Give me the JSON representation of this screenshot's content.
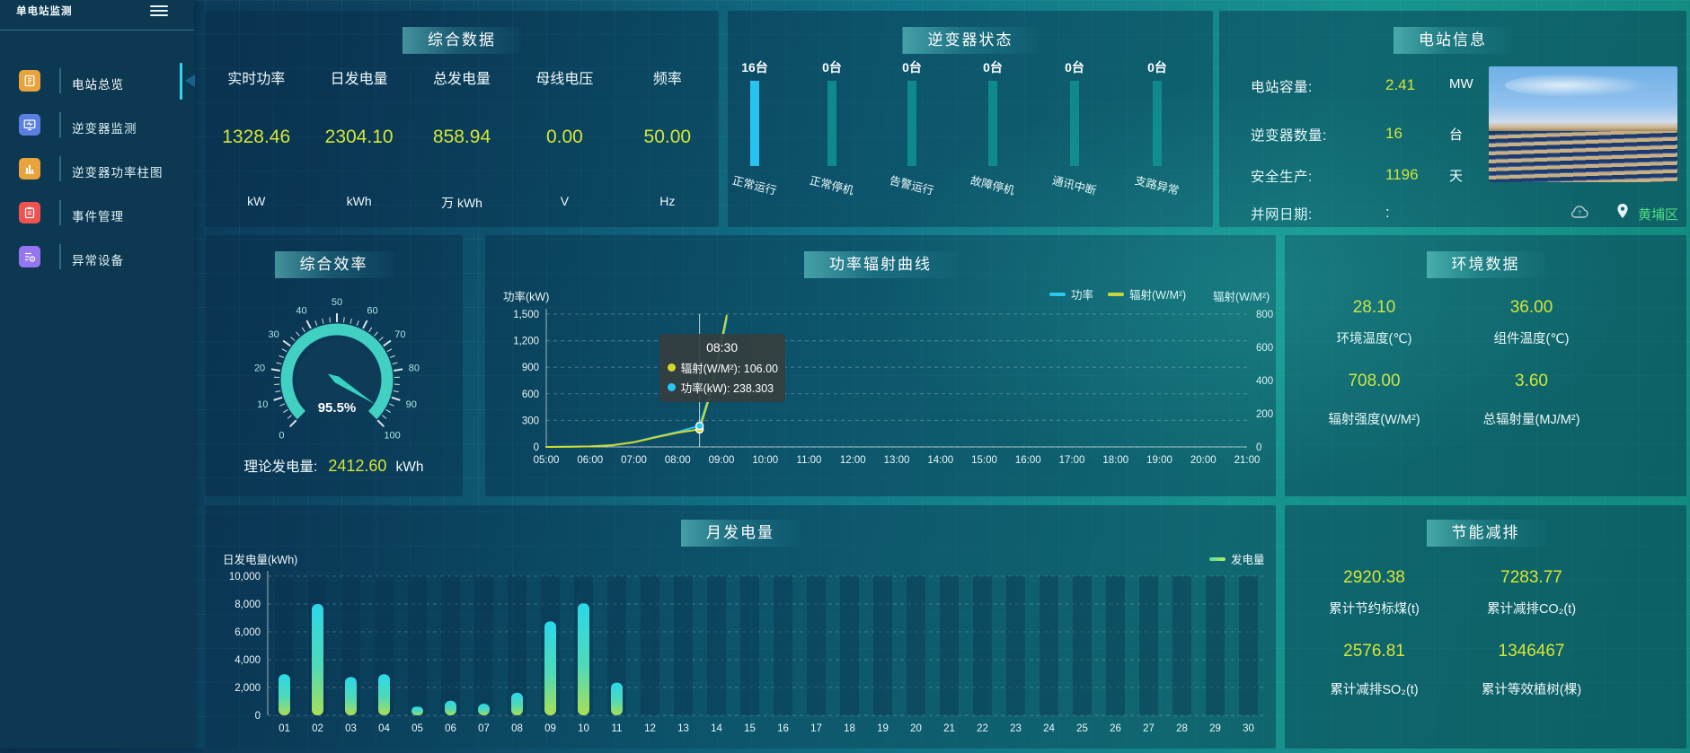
{
  "app": {
    "title": "单电站监测",
    "location": "黄埔区"
  },
  "sidebar": {
    "items": [
      {
        "label": "电站总览",
        "icon": "overview-icon",
        "color": "#e8a33d",
        "active": true
      },
      {
        "label": "逆变器监测",
        "icon": "inverter-monitor-icon",
        "color": "#5b7fe0",
        "active": false
      },
      {
        "label": "逆变器功率柱图",
        "icon": "inverter-power-bars-icon",
        "color": "#e8a33d",
        "active": false
      },
      {
        "label": "事件管理",
        "icon": "event-management-icon",
        "color": "#ef5350",
        "active": false
      },
      {
        "label": "异常设备",
        "icon": "abnormal-device-icon",
        "color": "#9575f0",
        "active": false
      }
    ]
  },
  "summary": {
    "title": "综合数据",
    "metrics": [
      {
        "label": "实时功率",
        "value": "1328.46",
        "unit": "kW"
      },
      {
        "label": "日发电量",
        "value": "2304.10",
        "unit": "kWh"
      },
      {
        "label": "总发电量",
        "value": "858.94",
        "unit": "万 kWh"
      },
      {
        "label": "母线电压",
        "value": "0.00",
        "unit": "V"
      },
      {
        "label": "频率",
        "value": "50.00",
        "unit": "Hz"
      }
    ]
  },
  "inverter_status": {
    "title": "逆变器状态",
    "bars": [
      {
        "count": "16台",
        "label": "正常运行",
        "highlight": true
      },
      {
        "count": "0台",
        "label": "正常停机",
        "highlight": false
      },
      {
        "count": "0台",
        "label": "告警运行",
        "highlight": false
      },
      {
        "count": "0台",
        "label": "故障停机",
        "highlight": false
      },
      {
        "count": "0台",
        "label": "通讯中断",
        "highlight": false
      },
      {
        "count": "0台",
        "label": "支路异常",
        "highlight": false
      }
    ]
  },
  "station_info": {
    "title": "电站信息",
    "rows": [
      {
        "label": "电站容量:",
        "value": "2.41",
        "unit": "MW",
        "white": false
      },
      {
        "label": "逆变器数量:",
        "value": "16",
        "unit": "台",
        "white": false
      },
      {
        "label": "安全生产:",
        "value": "1196",
        "unit": "天",
        "white": false
      },
      {
        "label": "并网日期:",
        "value": ":",
        "unit": "",
        "white": true
      }
    ]
  },
  "efficiency": {
    "title": "综合效率",
    "value_text": "95.5%",
    "footer_label": "理论发电量:",
    "footer_value": "2412.60",
    "footer_unit": "kWh"
  },
  "power_radiation": {
    "title": "功率辐射曲线",
    "tooltip": {
      "time": "08:30",
      "rows": [
        {
          "color": "#d6d62b",
          "text": "辐射(W/M²): 106.00"
        },
        {
          "color": "#29c6f2",
          "text": "功率(kW): 238.303"
        }
      ]
    }
  },
  "environment": {
    "title": "环境数据",
    "metrics": [
      {
        "value": "28.10",
        "label": "环境温度(℃)"
      },
      {
        "value": "36.00",
        "label": "组件温度(℃)"
      },
      {
        "value": "708.00",
        "label": "辐射强度(W/M²)"
      },
      {
        "value": "3.60",
        "label": "总辐射量(MJ/M²)"
      }
    ]
  },
  "monthly": {
    "title": "月发电量"
  },
  "energy_saving": {
    "title": "节能减排",
    "metrics": [
      {
        "value": "2920.38",
        "label": "累计节约标煤(t)"
      },
      {
        "value": "7283.77",
        "label": "累计减排CO₂(t)"
      },
      {
        "value": "2576.81",
        "label": "累计减排SO₂(t)"
      },
      {
        "value": "1346467",
        "label": "累计等效植树(棵)"
      }
    ]
  },
  "chart_data": [
    {
      "type": "bar",
      "title": "逆变器状态",
      "unit": "台",
      "categories": [
        "正常运行",
        "正常停机",
        "告警运行",
        "故障停机",
        "通讯中断",
        "支路异常"
      ],
      "values": [
        16,
        0,
        0,
        0,
        0,
        0
      ]
    },
    {
      "type": "gauge",
      "title": "综合效率",
      "value": 95.5,
      "min": 0,
      "max": 100,
      "unit": "%",
      "label_step": 10
    },
    {
      "type": "line",
      "title": "功率辐射曲线",
      "xticks": [
        "05:00",
        "06:00",
        "07:00",
        "08:00",
        "09:00",
        "10:00",
        "11:00",
        "12:00",
        "13:00",
        "14:00",
        "15:00",
        "16:00",
        "17:00",
        "18:00",
        "19:00",
        "20:00",
        "21:00"
      ],
      "x_range_hours": [
        5,
        21
      ],
      "ylabel_left": "功率(kW)",
      "ylim_left": [
        0,
        1500
      ],
      "yticks_left": [
        "1,500",
        "1,200",
        "900",
        "600",
        "300",
        "0"
      ],
      "ylabel_right": "辐射(W/M²)",
      "ylim_right": [
        0,
        800
      ],
      "yticks_right": [
        "800",
        "600",
        "400",
        "200",
        "0"
      ],
      "legend": [
        {
          "name": "功率",
          "color": "#29c6f2"
        },
        {
          "name": "辐射(W/M²)",
          "color": "#d6d62b"
        }
      ],
      "series": [
        {
          "name": "功率",
          "axis": "left",
          "color": "#29c6f2",
          "points": [
            [
              5,
              0
            ],
            [
              5.5,
              2
            ],
            [
              6,
              6
            ],
            [
              6.5,
              20
            ],
            [
              7,
              55
            ],
            [
              7.5,
              115
            ],
            [
              8,
              170
            ],
            [
              8.5,
              238.3
            ],
            [
              8.75,
              620
            ],
            [
              9,
              1150
            ],
            [
              9.12,
              1450
            ]
          ]
        },
        {
          "name": "辐射(W/M²)",
          "axis": "right",
          "color": "#d6d62b",
          "points": [
            [
              5,
              0
            ],
            [
              5.5,
              1
            ],
            [
              6,
              3
            ],
            [
              6.5,
              10
            ],
            [
              7,
              28
            ],
            [
              7.5,
              58
            ],
            [
              8,
              86
            ],
            [
              8.5,
              106
            ],
            [
              8.75,
              320
            ],
            [
              9,
              640
            ],
            [
              9.12,
              790
            ]
          ]
        }
      ],
      "tooltip": {
        "hour": 8.5,
        "time": "08:30",
        "radiation": 106.0,
        "power": 238.303
      },
      "grid": true,
      "legend_position": "top-right"
    },
    {
      "type": "bar",
      "title": "月发电量",
      "ylabel": "日发电量(kWh)",
      "legend": "发电量",
      "ylim": [
        0,
        10000
      ],
      "yticks": [
        "10,000",
        "8,000",
        "6,000",
        "4,000",
        "2,000",
        "0"
      ],
      "categories": [
        "01",
        "02",
        "03",
        "04",
        "05",
        "06",
        "07",
        "08",
        "09",
        "10",
        "11",
        "12",
        "13",
        "14",
        "15",
        "16",
        "17",
        "18",
        "19",
        "20",
        "21",
        "22",
        "23",
        "24",
        "25",
        "26",
        "27",
        "28",
        "29",
        "30"
      ],
      "values": [
        2950,
        8000,
        2750,
        2950,
        620,
        1050,
        830,
        1620,
        6750,
        8050,
        2350,
        0,
        0,
        0,
        0,
        0,
        0,
        0,
        0,
        0,
        0,
        0,
        0,
        0,
        0,
        0,
        0,
        0,
        0,
        0
      ],
      "grid": true
    }
  ]
}
